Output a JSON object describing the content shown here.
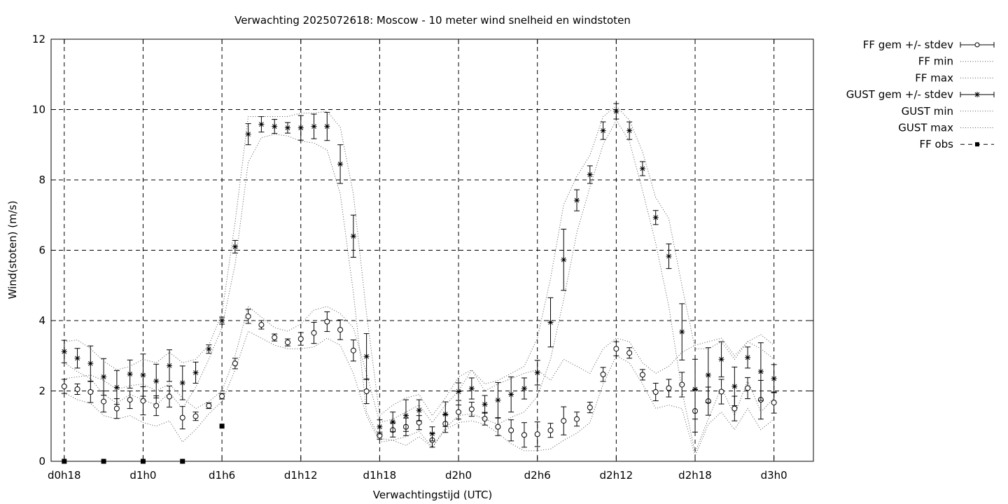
{
  "chart_data": {
    "type": "line",
    "title": "Verwachting 2025072618: Moscow - 10 meter wind snelheid en windstoten",
    "xlabel": "Verwachtingstijd (UTC)",
    "ylabel": "Wind(stoten) (m/s)",
    "xlim": [
      -1,
      57
    ],
    "ylim": [
      0,
      12
    ],
    "grid": true,
    "legend_position": "outside-right",
    "x_ticks": [
      {
        "x": 0,
        "label": "d0h18"
      },
      {
        "x": 6,
        "label": "d1h0"
      },
      {
        "x": 12,
        "label": "d1h6"
      },
      {
        "x": 18,
        "label": "d1h12"
      },
      {
        "x": 24,
        "label": "d1h18"
      },
      {
        "x": 30,
        "label": "d2h0"
      },
      {
        "x": 36,
        "label": "d2h6"
      },
      {
        "x": 42,
        "label": "d2h12"
      },
      {
        "x": 48,
        "label": "d2h18"
      },
      {
        "x": 54,
        "label": "d3h0"
      }
    ],
    "y_ticks": [
      0,
      2,
      4,
      6,
      8,
      10,
      12
    ],
    "x": [
      0,
      1,
      2,
      3,
      4,
      5,
      6,
      7,
      8,
      9,
      10,
      11,
      12,
      13,
      14,
      15,
      16,
      17,
      18,
      19,
      20,
      21,
      22,
      23,
      24,
      25,
      26,
      27,
      28,
      29,
      30,
      31,
      32,
      33,
      34,
      35,
      36,
      37,
      38,
      39,
      40,
      41,
      42,
      43,
      44,
      45,
      46,
      47,
      48,
      49,
      50,
      51,
      52,
      53,
      54
    ],
    "series": [
      {
        "name": "FF gem +/- stdev",
        "style": "errorbar-circle",
        "values": [
          2.13,
          2.05,
          1.97,
          1.7,
          1.5,
          1.75,
          1.72,
          1.58,
          1.84,
          1.24,
          1.28,
          1.58,
          1.85,
          2.78,
          4.12,
          3.88,
          3.52,
          3.38,
          3.48,
          3.65,
          3.97,
          3.74,
          3.15,
          1.99,
          0.73,
          0.89,
          0.98,
          1.1,
          0.6,
          1.07,
          1.4,
          1.48,
          1.21,
          0.98,
          0.88,
          0.75,
          0.77,
          0.88,
          1.15,
          1.2,
          1.53,
          2.47,
          3.2,
          3.08,
          2.46,
          1.97,
          2.08,
          2.18,
          1.43,
          1.71,
          1.98,
          1.5,
          2.08,
          1.75,
          1.67
        ],
        "stdev": [
          0.2,
          0.15,
          0.3,
          0.3,
          0.28,
          0.25,
          0.4,
          0.28,
          0.3,
          0.32,
          0.12,
          0.08,
          0.08,
          0.15,
          0.2,
          0.12,
          0.1,
          0.1,
          0.18,
          0.3,
          0.28,
          0.28,
          0.3,
          0.35,
          0.1,
          0.2,
          0.25,
          0.2,
          0.2,
          0.25,
          0.2,
          0.2,
          0.18,
          0.25,
          0.3,
          0.35,
          0.35,
          0.2,
          0.4,
          0.2,
          0.15,
          0.2,
          0.2,
          0.15,
          0.15,
          0.25,
          0.25,
          0.35,
          0.6,
          0.4,
          0.35,
          0.35,
          0.3,
          0.55,
          0.3
        ]
      },
      {
        "name": "FF min",
        "style": "dotted",
        "values": [
          1.95,
          1.75,
          1.65,
          1.3,
          1.2,
          1.3,
          1.1,
          1.0,
          1.15,
          0.55,
          0.9,
          1.35,
          1.7,
          2.6,
          3.7,
          3.5,
          3.3,
          3.2,
          3.2,
          3.25,
          3.5,
          3.3,
          2.5,
          1.3,
          0.55,
          0.6,
          0.45,
          0.7,
          0.4,
          0.9,
          1.1,
          1.15,
          1.05,
          0.8,
          0.5,
          0.3,
          0.3,
          0.35,
          0.6,
          0.8,
          1.1,
          2.2,
          3.0,
          2.8,
          2.2,
          1.5,
          1.6,
          1.5,
          0.15,
          1.05,
          1.4,
          0.9,
          1.5,
          0.9,
          1.2
        ]
      },
      {
        "name": "FF max",
        "style": "dotted",
        "values": [
          2.35,
          2.4,
          2.45,
          2.3,
          2.05,
          2.15,
          2.2,
          2.0,
          2.2,
          1.8,
          1.5,
          1.7,
          2.0,
          3.0,
          4.4,
          4.1,
          3.8,
          3.7,
          3.9,
          4.3,
          4.4,
          4.2,
          3.8,
          2.5,
          1.1,
          1.2,
          1.4,
          1.6,
          1.1,
          1.6,
          2.0,
          2.6,
          2.0,
          2.2,
          2.35,
          2.5,
          2.6,
          2.3,
          2.9,
          2.7,
          2.5,
          3.2,
          3.5,
          3.4,
          2.8,
          2.5,
          2.7,
          3.1,
          3.3,
          3.4,
          3.5,
          3.0,
          3.4,
          3.6,
          3.3
        ]
      },
      {
        "name": "GUST gem +/- stdev",
        "style": "errorbar-star",
        "values": [
          3.12,
          2.93,
          2.78,
          2.4,
          2.1,
          2.48,
          2.45,
          2.28,
          2.72,
          2.23,
          2.52,
          3.19,
          4.0,
          6.1,
          9.3,
          9.58,
          9.52,
          9.48,
          9.48,
          9.52,
          9.52,
          8.45,
          6.4,
          2.98,
          0.98,
          1.12,
          1.3,
          1.45,
          0.78,
          1.34,
          1.98,
          2.07,
          1.62,
          1.74,
          1.9,
          2.07,
          2.52,
          3.95,
          5.73,
          7.42,
          8.15,
          9.4,
          9.95,
          9.4,
          8.32,
          6.93,
          5.83,
          3.68,
          2.05,
          2.45,
          2.9,
          2.13,
          2.95,
          2.55,
          2.35
        ],
        "stdev": [
          0.32,
          0.28,
          0.5,
          0.52,
          0.48,
          0.4,
          0.6,
          0.48,
          0.45,
          0.48,
          0.3,
          0.12,
          0.1,
          0.18,
          0.3,
          0.22,
          0.2,
          0.15,
          0.35,
          0.35,
          0.4,
          0.55,
          0.6,
          0.65,
          0.2,
          0.28,
          0.45,
          0.3,
          0.2,
          0.35,
          0.25,
          0.3,
          0.25,
          0.5,
          0.5,
          0.3,
          0.35,
          0.7,
          0.87,
          0.3,
          0.25,
          0.25,
          0.22,
          0.25,
          0.2,
          0.2,
          0.35,
          0.8,
          0.85,
          0.78,
          0.5,
          0.55,
          0.3,
          0.82,
          0.4
        ]
      },
      {
        "name": "GUST min",
        "style": "dotted",
        "values": [
          2.8,
          2.55,
          2.35,
          1.9,
          1.65,
          1.9,
          1.75,
          1.6,
          1.95,
          1.5,
          2.1,
          2.9,
          3.8,
          5.6,
          8.5,
          9.2,
          9.3,
          9.25,
          9.1,
          9.05,
          8.85,
          7.6,
          4.8,
          1.4,
          0.65,
          0.6,
          0.7,
          0.85,
          0.4,
          0.95,
          1.3,
          1.35,
          1.2,
          1.05,
          1.25,
          1.4,
          1.85,
          2.9,
          4.6,
          6.5,
          7.8,
          9.0,
          9.7,
          9.1,
          7.7,
          6.2,
          4.4,
          2.0,
          0.25,
          1.2,
          2.1,
          1.3,
          2.3,
          1.4,
          1.8
        ]
      },
      {
        "name": "GUST max",
        "style": "dotted",
        "values": [
          3.4,
          3.45,
          3.2,
          2.85,
          2.6,
          2.7,
          2.9,
          2.8,
          3.1,
          2.8,
          2.9,
          3.3,
          4.2,
          6.8,
          9.8,
          9.8,
          9.8,
          9.8,
          9.9,
          9.9,
          9.95,
          9.5,
          7.6,
          4.2,
          1.3,
          1.6,
          1.8,
          1.9,
          1.3,
          1.8,
          2.4,
          2.6,
          2.2,
          2.3,
          2.5,
          2.7,
          3.5,
          5.2,
          7.3,
          8.1,
          8.7,
          9.8,
          10.1,
          9.7,
          8.8,
          7.5,
          6.9,
          5.0,
          3.2,
          3.2,
          3.4,
          2.9,
          3.4,
          3.2,
          2.9
        ]
      },
      {
        "name": "FF obs",
        "style": "square",
        "points": [
          [
            0,
            0
          ],
          [
            3,
            0
          ],
          [
            6,
            0
          ],
          [
            9,
            0
          ],
          [
            12,
            1
          ]
        ]
      }
    ]
  }
}
